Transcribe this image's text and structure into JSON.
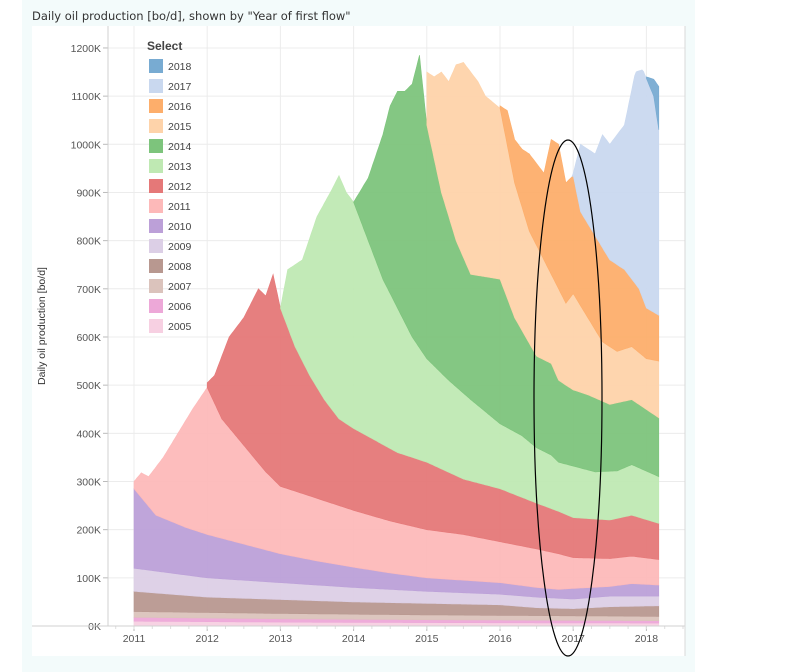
{
  "title": "Daily oil production [bo/d], shown by \"Year of first flow\"",
  "legend_title": "Select",
  "chart_data": {
    "type": "area",
    "stacked": true,
    "title": "Daily oil production [bo/d], shown by \"Year of first flow\"",
    "xlabel": "",
    "ylabel": "Daily oil production [bo/d]",
    "xlim": [
      2011.0,
      2018.17
    ],
    "ylim": [
      0,
      1230
    ],
    "y_unit": "K bo/d",
    "x_ticks": [
      "2011",
      "2012",
      "2013",
      "2014",
      "2015",
      "2016",
      "2017",
      "2018"
    ],
    "y_ticks": [
      "0K",
      "100K",
      "200K",
      "300K",
      "400K",
      "500K",
      "600K",
      "700K",
      "800K",
      "900K",
      "1000K",
      "1100K",
      "1200K"
    ],
    "grid": true,
    "legend_position": "top-left",
    "annotation": "hand-drawn ellipse around 2017",
    "value_note": "each series gives its cumulative stacked top edge (K bo/d) at points [year, value]",
    "series": [
      {
        "name": "2005",
        "color": "#f7d0e2",
        "stack_top": [
          [
            2011,
            10
          ],
          [
            2013,
            8
          ],
          [
            2015,
            7
          ],
          [
            2018.17,
            6
          ]
        ]
      },
      {
        "name": "2006",
        "color": "#eda8d8",
        "stack_top": [
          [
            2011,
            18
          ],
          [
            2013,
            15
          ],
          [
            2015,
            13
          ],
          [
            2018.17,
            11
          ]
        ]
      },
      {
        "name": "2007",
        "color": "#dbc3bc",
        "stack_top": [
          [
            2011,
            30
          ],
          [
            2013,
            26
          ],
          [
            2015,
            23
          ],
          [
            2018.17,
            20
          ]
        ]
      },
      {
        "name": "2008",
        "color": "#b89890",
        "stack_top": [
          [
            2011,
            72
          ],
          [
            2011.5,
            66
          ],
          [
            2012,
            60
          ],
          [
            2013,
            55
          ],
          [
            2014,
            50
          ],
          [
            2015,
            47
          ],
          [
            2016,
            44
          ],
          [
            2016.5,
            38
          ],
          [
            2017,
            36
          ],
          [
            2017.5,
            40
          ],
          [
            2018.17,
            42
          ]
        ]
      },
      {
        "name": "2009",
        "color": "#dccfe6",
        "stack_top": [
          [
            2011,
            120
          ],
          [
            2011.5,
            110
          ],
          [
            2012,
            100
          ],
          [
            2013,
            90
          ],
          [
            2014,
            80
          ],
          [
            2015,
            72
          ],
          [
            2016,
            66
          ],
          [
            2016.5,
            60
          ],
          [
            2017,
            56
          ],
          [
            2017.5,
            62
          ],
          [
            2018.17,
            62
          ]
        ]
      },
      {
        "name": "2010",
        "color": "#bca0d8",
        "stack_top": [
          [
            2011,
            285
          ],
          [
            2011.3,
            230
          ],
          [
            2011.7,
            205
          ],
          [
            2012,
            190
          ],
          [
            2012.5,
            170
          ],
          [
            2013,
            150
          ],
          [
            2013.5,
            135
          ],
          [
            2014,
            122
          ],
          [
            2014.5,
            110
          ],
          [
            2015,
            100
          ],
          [
            2015.5,
            95
          ],
          [
            2016,
            90
          ],
          [
            2016.5,
            80
          ],
          [
            2016.8,
            76
          ],
          [
            2017,
            78
          ],
          [
            2017.5,
            82
          ],
          [
            2017.8,
            88
          ],
          [
            2018.17,
            85
          ]
        ]
      },
      {
        "name": "2011",
        "color": "#fdb9b9",
        "stack_top": [
          [
            2011,
            300
          ],
          [
            2011.1,
            318
          ],
          [
            2011.2,
            310
          ],
          [
            2011.4,
            350
          ],
          [
            2011.6,
            400
          ],
          [
            2011.8,
            450
          ],
          [
            2012,
            495
          ],
          [
            2012.2,
            430
          ],
          [
            2012.5,
            375
          ],
          [
            2012.8,
            320
          ],
          [
            2013,
            290
          ],
          [
            2013.5,
            265
          ],
          [
            2014,
            240
          ],
          [
            2014.5,
            218
          ],
          [
            2015,
            200
          ],
          [
            2015.5,
            190
          ],
          [
            2016,
            175
          ],
          [
            2016.5,
            160
          ],
          [
            2016.8,
            150
          ],
          [
            2017,
            142
          ],
          [
            2017.5,
            140
          ],
          [
            2017.8,
            145
          ],
          [
            2018.17,
            138
          ]
        ]
      },
      {
        "name": "2012",
        "color": "#e57878",
        "stack_top": [
          [
            2011.99,
            0
          ],
          [
            2012,
            505
          ],
          [
            2012.1,
            520
          ],
          [
            2012.3,
            600
          ],
          [
            2012.5,
            640
          ],
          [
            2012.7,
            700
          ],
          [
            2012.8,
            685
          ],
          [
            2012.9,
            730
          ],
          [
            2013.0,
            660
          ],
          [
            2013.2,
            580
          ],
          [
            2013.4,
            520
          ],
          [
            2013.6,
            470
          ],
          [
            2013.8,
            430
          ],
          [
            2014,
            410
          ],
          [
            2014.3,
            385
          ],
          [
            2014.6,
            360
          ],
          [
            2015,
            340
          ],
          [
            2015.5,
            305
          ],
          [
            2016,
            285
          ],
          [
            2016.5,
            255
          ],
          [
            2016.8,
            238
          ],
          [
            2017,
            225
          ],
          [
            2017.5,
            220
          ],
          [
            2017.8,
            230
          ],
          [
            2018.17,
            213
          ]
        ]
      },
      {
        "name": "2013",
        "color": "#bfe9b3",
        "stack_top": [
          [
            2012.99,
            0
          ],
          [
            2013,
            660
          ],
          [
            2013.1,
            740
          ],
          [
            2013.3,
            760
          ],
          [
            2013.5,
            850
          ],
          [
            2013.7,
            905
          ],
          [
            2013.8,
            935
          ],
          [
            2013.9,
            900
          ],
          [
            2014,
            880
          ],
          [
            2014.2,
            800
          ],
          [
            2014.4,
            720
          ],
          [
            2014.6,
            660
          ],
          [
            2014.8,
            600
          ],
          [
            2015,
            555
          ],
          [
            2015.3,
            510
          ],
          [
            2015.6,
            470
          ],
          [
            2016,
            420
          ],
          [
            2016.3,
            395
          ],
          [
            2016.5,
            370
          ],
          [
            2016.7,
            355
          ],
          [
            2016.8,
            340
          ],
          [
            2017,
            332
          ],
          [
            2017.3,
            320
          ],
          [
            2017.6,
            322
          ],
          [
            2017.8,
            335
          ],
          [
            2018.17,
            310
          ]
        ]
      },
      {
        "name": "2014",
        "color": "#7dc47c",
        "stack_top": [
          [
            2013.99,
            0
          ],
          [
            2014,
            880
          ],
          [
            2014.2,
            930
          ],
          [
            2014.4,
            1020
          ],
          [
            2014.5,
            1080
          ],
          [
            2014.6,
            1110
          ],
          [
            2014.7,
            1110
          ],
          [
            2014.8,
            1125
          ],
          [
            2014.9,
            1185
          ],
          [
            2015,
            1040
          ],
          [
            2015.2,
            900
          ],
          [
            2015.4,
            800
          ],
          [
            2015.6,
            730
          ],
          [
            2016,
            720
          ],
          [
            2016.2,
            640
          ],
          [
            2016.5,
            560
          ],
          [
            2016.7,
            545
          ],
          [
            2016.8,
            510
          ],
          [
            2017,
            490
          ],
          [
            2017.2,
            480
          ],
          [
            2017.5,
            460
          ],
          [
            2017.8,
            470
          ],
          [
            2018.17,
            432
          ]
        ]
      },
      {
        "name": "2015",
        "color": "#fed3aa",
        "stack_top": [
          [
            2014.99,
            0
          ],
          [
            2015,
            1150
          ],
          [
            2015.1,
            1140
          ],
          [
            2015.2,
            1150
          ],
          [
            2015.3,
            1130
          ],
          [
            2015.4,
            1165
          ],
          [
            2015.5,
            1170
          ],
          [
            2015.7,
            1130
          ],
          [
            2015.8,
            1100
          ],
          [
            2016,
            1075
          ],
          [
            2016.2,
            920
          ],
          [
            2016.4,
            820
          ],
          [
            2016.6,
            760
          ],
          [
            2016.8,
            700
          ],
          [
            2016.9,
            670
          ],
          [
            2017,
            690
          ],
          [
            2017.2,
            640
          ],
          [
            2017.4,
            590
          ],
          [
            2017.6,
            570
          ],
          [
            2017.8,
            580
          ],
          [
            2018,
            555
          ],
          [
            2018.17,
            550
          ]
        ]
      },
      {
        "name": "2016",
        "color": "#fdae6b",
        "stack_top": [
          [
            2015.99,
            0
          ],
          [
            2016,
            1080
          ],
          [
            2016.1,
            1070
          ],
          [
            2016.2,
            1010
          ],
          [
            2016.3,
            990
          ],
          [
            2016.4,
            980
          ],
          [
            2016.6,
            940
          ],
          [
            2016.7,
            1010
          ],
          [
            2016.8,
            1000
          ],
          [
            2016.9,
            920
          ],
          [
            2017,
            935
          ],
          [
            2017.1,
            860
          ],
          [
            2017.3,
            810
          ],
          [
            2017.5,
            760
          ],
          [
            2017.7,
            740
          ],
          [
            2017.9,
            700
          ],
          [
            2018,
            660
          ],
          [
            2018.17,
            645
          ]
        ]
      },
      {
        "name": "2017",
        "color": "#c9d8ef",
        "stack_top": [
          [
            2016.99,
            0
          ],
          [
            2016.97,
            880
          ],
          [
            2017,
            940
          ],
          [
            2017.1,
            1000
          ],
          [
            2017.3,
            980
          ],
          [
            2017.4,
            1020
          ],
          [
            2017.5,
            1000
          ],
          [
            2017.7,
            1040
          ],
          [
            2017.85,
            1150
          ],
          [
            2017.95,
            1155
          ],
          [
            2018.1,
            1100
          ],
          [
            2018.17,
            1030
          ]
        ]
      },
      {
        "name": "2018",
        "color": "#78abd2",
        "stack_top": [
          [
            2017.99,
            0
          ],
          [
            2018,
            1140
          ],
          [
            2018.1,
            1135
          ],
          [
            2018.17,
            1120
          ]
        ]
      }
    ]
  }
}
